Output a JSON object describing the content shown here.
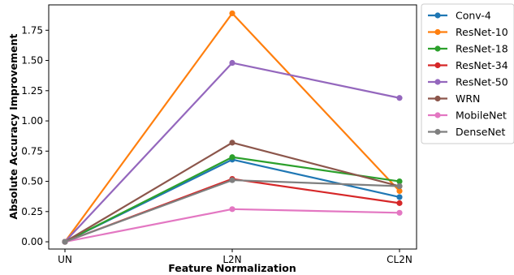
{
  "chart_data": {
    "type": "line",
    "title": "",
    "xlabel": "Feature Normalization",
    "ylabel": "Absolute Accuracy Improvement",
    "categories": [
      "UN",
      "L2N",
      "CL2N"
    ],
    "ylim": [
      -0.06,
      1.96
    ],
    "yticks": [
      "0.00",
      "0.25",
      "0.50",
      "0.75",
      "1.00",
      "1.25",
      "1.50",
      "1.75"
    ],
    "grid": false,
    "legend_position": "outside-right",
    "series": [
      {
        "name": "Conv-4",
        "color": "#1f77b4",
        "values": [
          0,
          0.68,
          0.37
        ]
      },
      {
        "name": "ResNet-10",
        "color": "#ff7f0e",
        "values": [
          0,
          1.89,
          0.42
        ]
      },
      {
        "name": "ResNet-18",
        "color": "#2ca02c",
        "values": [
          0,
          0.7,
          0.5
        ]
      },
      {
        "name": "ResNet-34",
        "color": "#d62728",
        "values": [
          0,
          0.52,
          0.32
        ]
      },
      {
        "name": "ResNet-50",
        "color": "#9467bd",
        "values": [
          0,
          1.48,
          1.19
        ]
      },
      {
        "name": "WRN",
        "color": "#8c564b",
        "values": [
          0,
          0.82,
          0.46
        ]
      },
      {
        "name": "MobileNet",
        "color": "#e377c2",
        "values": [
          0,
          0.27,
          0.24
        ]
      },
      {
        "name": "DenseNet",
        "color": "#7f7f7f",
        "values": [
          0,
          0.51,
          0.46
        ]
      }
    ]
  }
}
